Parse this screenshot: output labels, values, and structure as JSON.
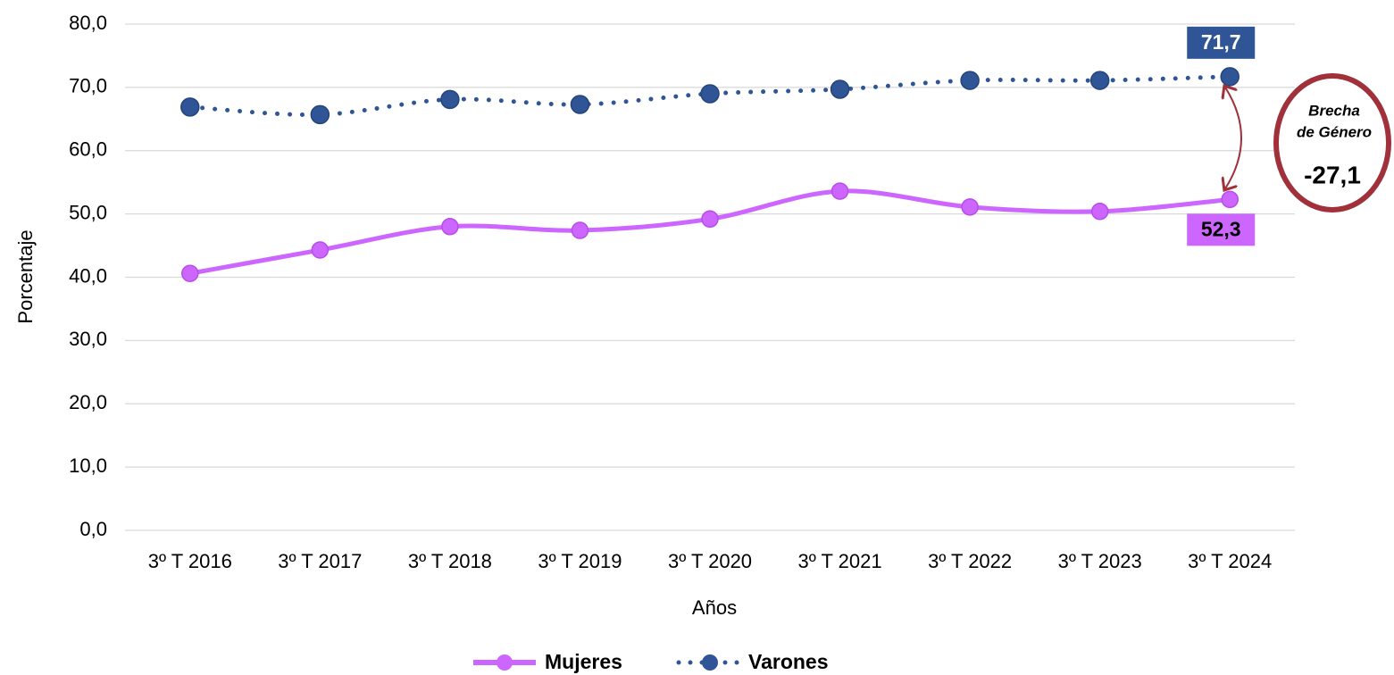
{
  "chart_data": {
    "type": "line",
    "x_label": "Años",
    "y_label": "Porcentaje",
    "categories": [
      "3º T 2016",
      "3º T 2017",
      "3º T 2018",
      "3º T 2019",
      "3º T 2020",
      "3º T 2021",
      "3º T 2022",
      "3º T 2023",
      "3º T 2024"
    ],
    "series": [
      {
        "name": "Mujeres",
        "color": "#cc66ff",
        "values": [
          40.6,
          44.3,
          48.0,
          47.4,
          49.2,
          53.6,
          51.1,
          50.4,
          52.3
        ],
        "value_labels": [
          null,
          null,
          null,
          null,
          null,
          null,
          null,
          null,
          "52,3"
        ]
      },
      {
        "name": "Varones",
        "color": "#2f5597",
        "values": [
          66.9,
          65.7,
          68.1,
          67.3,
          69.0,
          69.7,
          71.1,
          71.1,
          71.7
        ],
        "value_labels": [
          null,
          null,
          null,
          null,
          null,
          null,
          null,
          null,
          "71,7"
        ]
      }
    ],
    "ylim": [
      0,
      80
    ],
    "yticks": [
      {
        "value": 0,
        "label": "0,0"
      },
      {
        "value": 10,
        "label": "10,0"
      },
      {
        "value": 20,
        "label": "20,0"
      },
      {
        "value": 30,
        "label": "30,0"
      },
      {
        "value": 40,
        "label": "40,0"
      },
      {
        "value": 50,
        "label": "50,0"
      },
      {
        "value": 60,
        "label": "60,0"
      },
      {
        "value": 70,
        "label": "70,0"
      },
      {
        "value": 80,
        "label": "80,0"
      }
    ],
    "grid": true,
    "legend": "bottom",
    "annotation": {
      "text": [
        "Brecha",
        "de Género"
      ],
      "value": -27.1,
      "label": "-27,1"
    }
  }
}
